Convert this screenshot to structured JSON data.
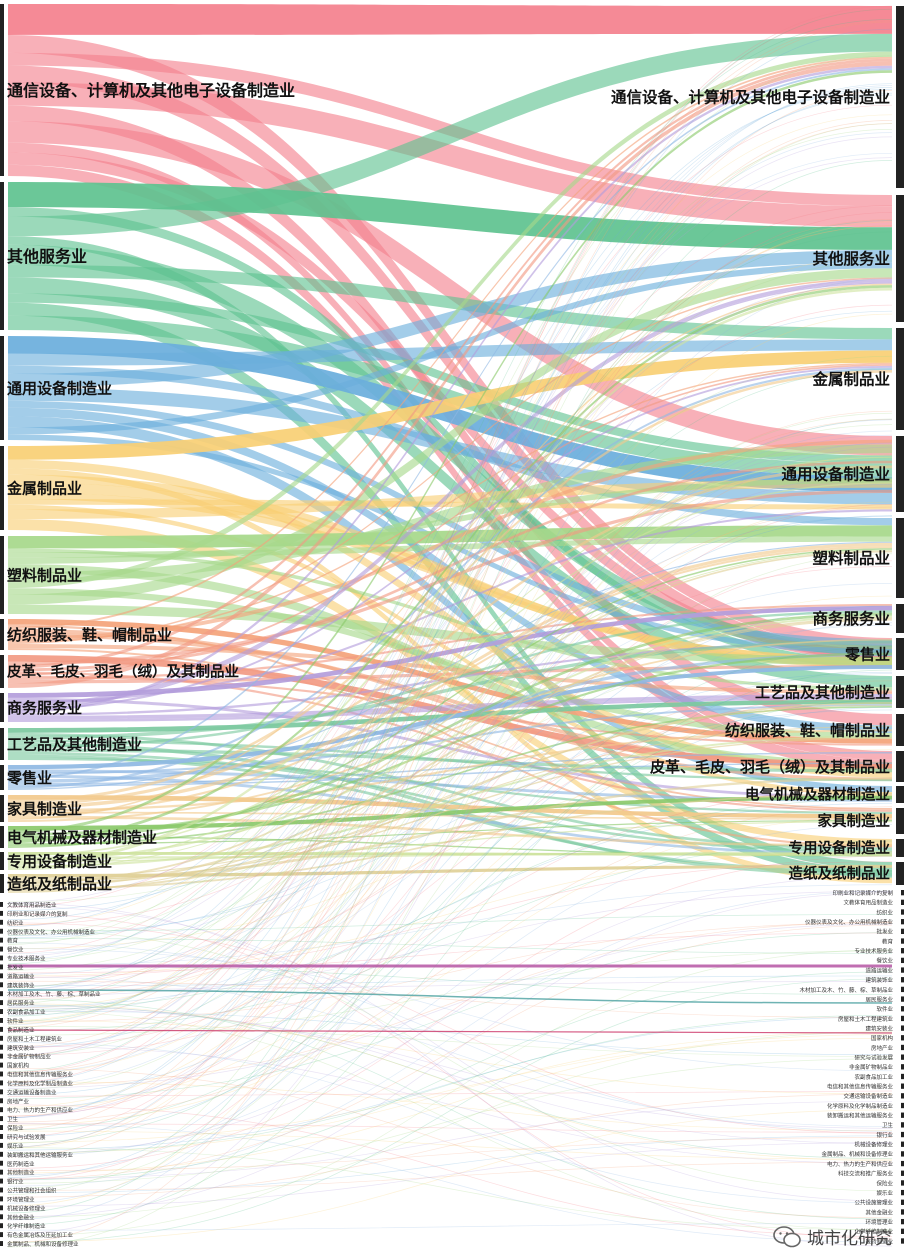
{
  "left_nodes": [
    {
      "label": "通信设备、计算机及其他电子设备制造业",
      "color": "#f4808d",
      "weight": 170
    },
    {
      "label": "其他服务业",
      "color": "#5ec28f",
      "weight": 150
    },
    {
      "label": "通用设备制造业",
      "color": "#6aaedc",
      "weight": 110
    },
    {
      "label": "金属制品业",
      "color": "#f9cf74",
      "weight": 90
    },
    {
      "label": "塑料制品业",
      "color": "#a6d88a",
      "weight": 80
    },
    {
      "label": "纺织服装、鞋、帽制品业",
      "color": "#f4a37a",
      "weight": 35
    },
    {
      "label": "皮革、毛皮、羽毛（绒）及其制品业",
      "color": "#f29a83",
      "weight": 35
    },
    {
      "label": "商务服务业",
      "color": "#b39ddb",
      "weight": 30
    },
    {
      "label": "工艺品及其他制造业",
      "color": "#7cc9a0",
      "weight": 32
    },
    {
      "label": "零售业",
      "color": "#8fb8e3",
      "weight": 30
    },
    {
      "label": "家具制造业",
      "color": "#f2c98c",
      "weight": 28
    },
    {
      "label": "电气机械及器材制造业",
      "color": "#8bc96b",
      "weight": 26
    },
    {
      "label": "专用设备制造业",
      "color": "#cfe3a0",
      "weight": 20
    },
    {
      "label": "造纸及纸制品业",
      "color": "#e0d098",
      "weight": 20
    }
  ],
  "right_nodes": [
    {
      "label": "通信设备、计算机及其他电子设备制造业"
    },
    {
      "label": "其他服务业"
    },
    {
      "label": "金属制品业"
    },
    {
      "label": "通用设备制造业"
    },
    {
      "label": "塑料制品业"
    },
    {
      "label": "商务服务业"
    },
    {
      "label": "零售业"
    },
    {
      "label": "工艺品及其他制造业"
    },
    {
      "label": "纺织服装、鞋、帽制品业"
    },
    {
      "label": "皮革、毛皮、羽毛（绒）及其制品业"
    },
    {
      "label": "电气机械及器材制造业"
    },
    {
      "label": "家具制造业"
    },
    {
      "label": "专用设备制造业"
    },
    {
      "label": "造纸及纸制品业"
    }
  ],
  "left_small_nodes": [
    "文教体育用品制造业",
    "印刷业和记录媒介的复制",
    "纺织业",
    "仪器仪表及文化、办公用机械制造业",
    "教育",
    "餐饮业",
    "专业技术服务业",
    "批发业",
    "道路运输业",
    "建筑装饰业",
    "木材加工及木、竹、藤、棕、草制品业",
    "居民服务业",
    "农副食品加工业",
    "软件业",
    "食品制造业",
    "房屋和土木工程建筑业",
    "建筑安装业",
    "非金属矿物制品业",
    "国家机构",
    "电信和其他信息传输服务业",
    "化学原料及化学制品制造业",
    "交通运输设备制造业",
    "房地产业",
    "电力、热力的生产和供应业",
    "卫生",
    "保险业",
    "研究与试验发展",
    "娱乐业",
    "装卸搬运和其他运输服务业",
    "医药制造业",
    "其他制造业",
    "银行业",
    "公共管理和社会组织",
    "环境管理业",
    "机械设备修理业",
    "其他金融业",
    "化学纤维制造业",
    "有色金属冶炼及压延加工业",
    "金属制品、机械和设备修理业"
  ],
  "right_small_nodes": [
    "印刷业和记录媒介的复制",
    "文教体育用品制造业",
    "纺织业",
    "仪器仪表及文化、办公用机械制造业",
    "批发业",
    "教育",
    "专业技术服务业",
    "餐饮业",
    "道路运输业",
    "建筑装饰业",
    "木材加工及木、竹、藤、棕、草制品业",
    "居民服务业",
    "软件业",
    "房屋和土木工程建筑业",
    "建筑安装业",
    "国家机构",
    "房地产业",
    "研究与试验发展",
    "非金属矿物制品业",
    "农副食品加工业",
    "电信和其他信息传输服务业",
    "交通运输设备制造业",
    "化学原料及化学制品制造业",
    "装卸搬运和其他运输服务业",
    "卫生",
    "银行业",
    "机械设备修理业",
    "金属制品、机械和设备修理业",
    "电力、热力的生产和供应业",
    "科技交流和推广服务业",
    "保险业",
    "娱乐业",
    "公共设施管理业",
    "其他金融业",
    "环境管理业",
    "化学纤维制造业",
    "医药制造业"
  ],
  "watermark": {
    "text": "城市化研究",
    "icon": "wechat-icon"
  }
}
